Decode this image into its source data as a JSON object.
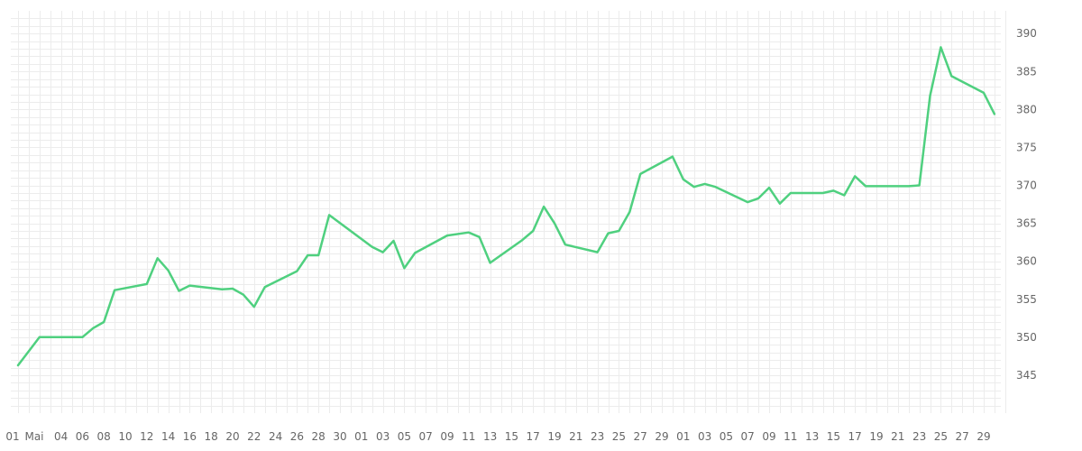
{
  "chart_data": {
    "type": "line",
    "title": "",
    "xlabel": "",
    "ylabel": "",
    "ylim": [
      340,
      393
    ],
    "grid": true,
    "legend": "none",
    "colors": {
      "line": "#4fd07f",
      "grid": "#ececec",
      "text": "#666666"
    },
    "y_ticks": [
      "345",
      "350",
      "355",
      "360",
      "365",
      "370",
      "375",
      "380",
      "385",
      "390"
    ],
    "x_tick_labels": [
      "01",
      "Mai",
      "04",
      "06",
      "08",
      "10",
      "12",
      "14",
      "16",
      "18",
      "20",
      "22",
      "24",
      "26",
      "28",
      "30",
      "01",
      "03",
      "05",
      "07",
      "09",
      "11",
      "13",
      "15",
      "17",
      "19",
      "21",
      "23",
      "25",
      "27",
      "29",
      "01",
      "03",
      "05",
      "07",
      "09",
      "11",
      "13",
      "15",
      "17",
      "19",
      "21",
      "23",
      "25",
      "27",
      "29"
    ],
    "x_tick_days": [
      0,
      2,
      4,
      6,
      8,
      10,
      12,
      14,
      16,
      18,
      20,
      22,
      24,
      26,
      28,
      30,
      32,
      34,
      36,
      38,
      40,
      42,
      44,
      46,
      48,
      50,
      52,
      54,
      56,
      58,
      60,
      62,
      64,
      66,
      68,
      70,
      72,
      74,
      76,
      78,
      80,
      82,
      84,
      86,
      88,
      90
    ],
    "series": [
      {
        "values": [
          [
            0,
            346.3
          ],
          [
            2,
            350.0
          ],
          [
            6,
            350.0
          ],
          [
            7,
            351.2
          ],
          [
            8,
            352.0
          ],
          [
            9,
            356.2
          ],
          [
            12,
            357.0
          ],
          [
            13,
            360.4
          ],
          [
            14,
            358.8
          ],
          [
            15,
            356.1
          ],
          [
            16,
            356.8
          ],
          [
            19,
            356.3
          ],
          [
            20,
            356.4
          ],
          [
            21,
            355.6
          ],
          [
            22,
            354.0
          ],
          [
            23,
            356.6
          ],
          [
            26,
            358.7
          ],
          [
            27,
            360.8
          ],
          [
            28,
            360.8
          ],
          [
            29,
            366.1
          ],
          [
            33,
            361.9
          ],
          [
            34,
            361.2
          ],
          [
            35,
            362.7
          ],
          [
            36,
            359.1
          ],
          [
            37,
            361.1
          ],
          [
            40,
            363.4
          ],
          [
            42,
            363.8
          ],
          [
            43,
            363.2
          ],
          [
            44,
            359.8
          ],
          [
            47,
            362.8
          ],
          [
            48,
            364.0
          ],
          [
            49,
            367.2
          ],
          [
            50,
            365.0
          ],
          [
            51,
            362.2
          ],
          [
            54,
            361.2
          ],
          [
            55,
            363.7
          ],
          [
            56,
            364.0
          ],
          [
            57,
            366.5
          ],
          [
            58,
            371.5
          ],
          [
            61,
            373.8
          ],
          [
            62,
            370.8
          ],
          [
            63,
            369.8
          ],
          [
            64,
            370.2
          ],
          [
            65,
            369.8
          ],
          [
            68,
            367.8
          ],
          [
            69,
            368.3
          ],
          [
            70,
            369.7
          ],
          [
            71,
            367.6
          ],
          [
            72,
            369.0
          ],
          [
            75,
            369.0
          ],
          [
            76,
            369.3
          ],
          [
            77,
            368.7
          ],
          [
            78,
            371.2
          ],
          [
            79,
            369.9
          ],
          [
            83,
            369.9
          ],
          [
            84,
            370.0
          ],
          [
            85,
            381.8
          ],
          [
            86,
            388.2
          ],
          [
            87,
            384.4
          ],
          [
            90,
            382.2
          ],
          [
            91,
            379.4
          ]
        ]
      }
    ]
  }
}
